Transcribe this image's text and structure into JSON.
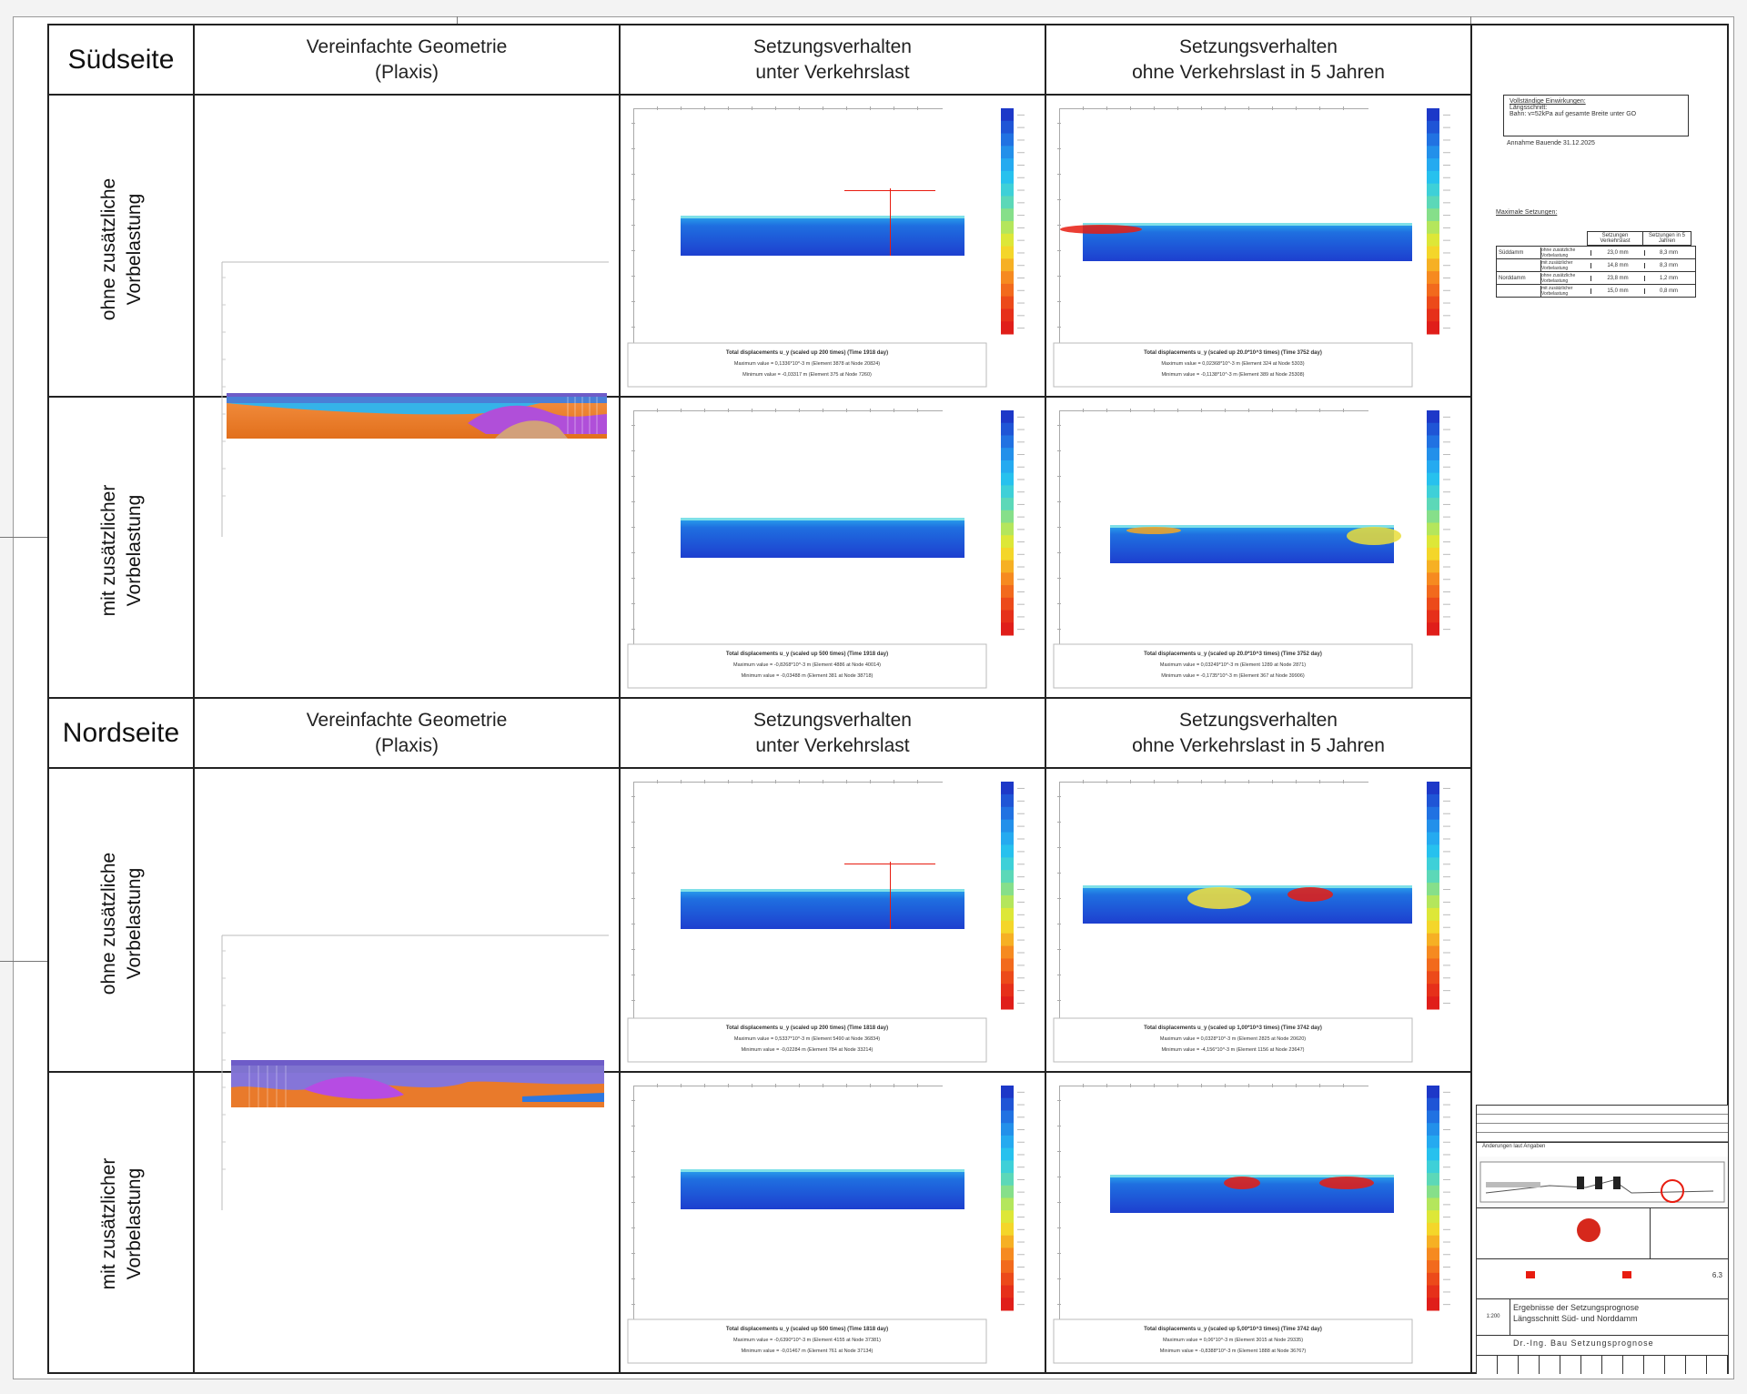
{
  "sections": [
    {
      "side": "Südseite",
      "headers": {
        "geometry": "Vereinfachte Geometrie\n(Plaxis)",
        "traffic": "Setzungsverhalten\nunter Verkehrslast",
        "longterm": "Setzungsverhalten\nohne Verkehrslast in 5 Jahren"
      },
      "rows": [
        {
          "label": "ohne zusätzliche\nVorbelastung",
          "traffic_caption": [
            "Total displacements u_y (scaled up 200 times) (Time 1918 day)",
            "Maximum value = 0,1336*10^-3 m (Element 3878 at Node 20824)",
            "Minimum value = -0,03317 m (Element 375 at Node 7260)"
          ],
          "longterm_caption": [
            "Total displacements u_y (scaled up 20.0*10^3 times) (Time 3752 day)",
            "Maximum value = 0,02368*10^-3 m (Element 324 at Node 5303)",
            "Minimum value = -0,1138*10^-3 m (Element 389 at Node 25308)"
          ]
        },
        {
          "label": "mit zusätzlicher\nVorbelastung",
          "traffic_caption": [
            "Total displacements u_y (scaled up 500 times) (Time 1918 day)",
            "Maximum value = -0,8268*10^-3 m (Element 4886 at Node 40014)",
            "Minimum value = -0,03488 m (Element 381 at Node 38718)"
          ],
          "longterm_caption": [
            "Total displacements u_y (scaled up 20.0*10^3 times) (Time 3752 day)",
            "Maximum value = 0,03249*10^-3 m (Element 1289 at Node 2871)",
            "Minimum value = -0,1735*10^-3 m (Element 367 at Node 39906)"
          ]
        }
      ]
    },
    {
      "side": "Nordseite",
      "headers": {
        "geometry": "Vereinfachte Geometrie\n(Plaxis)",
        "traffic": "Setzungsverhalten\nunter Verkehrslast",
        "longterm": "Setzungsverhalten\nohne Verkehrslast in 5 Jahren"
      },
      "rows": [
        {
          "label": "ohne zusätzliche\nVorbelastung",
          "traffic_caption": [
            "Total displacements u_y (scaled up 200 times) (Time 1818 day)",
            "Maximum value = 0,5337*10^-3 m (Element 5490 at Node 36834)",
            "Minimum value = -0,02284 m (Element 784 at Node 33214)"
          ],
          "longterm_caption": [
            "Total displacements u_y (scaled up 1,00*10^3 times) (Time 3742 day)",
            "Maximum value = 0,0328*10^-3 m (Element 2825 at Node 20620)",
            "Minimum value = -4,156*10^-3 m (Element 1156 at Node 23647)"
          ]
        },
        {
          "label": "mit zusätzlicher\nVorbelastung",
          "traffic_caption": [
            "Total displacements u_y (scaled up 500 times) (Time 1818 day)",
            "Maximum value = -0,6390*10^-3 m (Element 4155 at Node 37381)",
            "Minimum value = -0,01467 m (Element 761 at Node 37134)"
          ],
          "longterm_caption": [
            "Total displacements u_y (scaled up 5,00*10^3 times) (Time 3742 day)",
            "Maximum value = 0,06*10^-3 m (Element 3015 at Node 29335)",
            "Minimum value = -0,8388*10^-3 m (Element 1888 at Node 36767)"
          ]
        }
      ]
    }
  ],
  "notes": {
    "box_title": "Vollständige Einwirkungen:",
    "box_lines": [
      "Längsschnitt:",
      "Bahn: v=52kPa auf gesamte Breite unter GO"
    ],
    "assumption": "Annahme Bauende 31.12.2025",
    "max_title": "Maximale Setzungen:",
    "table_headers": [
      "Setzungen Verkehrslast",
      "Setzungen in 5 Jahren"
    ],
    "table_rows": [
      {
        "side": "Süddamm",
        "case": "ohne zusätzliche Vorbelastung",
        "v1": "23,0 mm",
        "v2": "8,3 mm"
      },
      {
        "side": "",
        "case": "mit zusätzlicher Vorbelastung",
        "v1": "14,8 mm",
        "v2": "8,3 mm"
      },
      {
        "side": "Norddamm",
        "case": "ohne zusätzliche Vorbelastung",
        "v1": "23,8 mm",
        "v2": "1,2 mm"
      },
      {
        "side": "",
        "case": "mit zusätzlicher Vorbelastung",
        "v1": "15,0 mm",
        "v2": "0,8 mm"
      }
    ]
  },
  "title_block": {
    "revision_text": "Änderungen laut Angaben",
    "scale": "1:200",
    "title_lines": [
      "Ergebnisse der Setzungsprognose",
      "Längsschnitt Süd- und Norddamm"
    ],
    "sheet_number": "6.3",
    "footer": "Dr.-Ing. Bau Setzungsprognose"
  },
  "colors": {
    "blue": "#1f3fbf",
    "cyan": "#23c6e6",
    "red": "#e81c10",
    "orange": "#e97a2b",
    "purple": "#a84bd8"
  }
}
